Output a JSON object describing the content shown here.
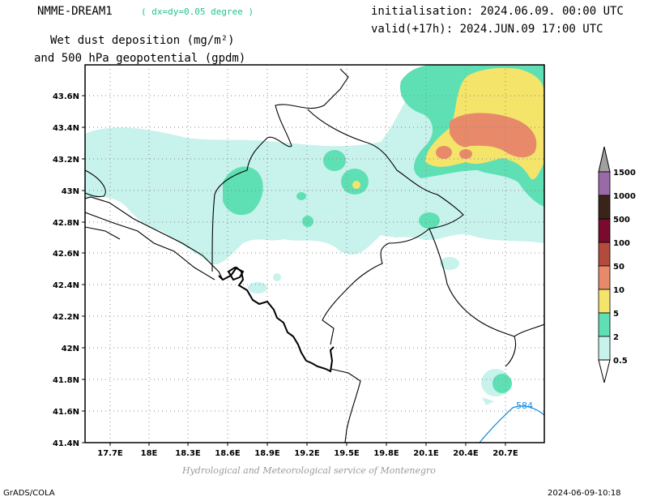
{
  "header": {
    "model": "NMME-DREAM1",
    "resolution": "( dx=dy=0.05 degree )",
    "initialisation": "initialisation: 2024.06.09. 00:00 UTC",
    "valid": "valid(+17h): 2024.JUN.09 17:00 UTC",
    "title_line1": "Wet dust deposition (mg/m²)",
    "title_line2": "and 500 hPa geopotential (gpdm)"
  },
  "map": {
    "lat_labels": [
      "43.6N",
      "43.4N",
      "43.2N",
      "43N",
      "42.8N",
      "42.6N",
      "42.4N",
      "42.2N",
      "42N",
      "41.8N",
      "41.6N",
      "41.4N"
    ],
    "lon_labels": [
      "17.7E",
      "18E",
      "18.3E",
      "18.6E",
      "18.9E",
      "19.2E",
      "19.5E",
      "19.8E",
      "20.1E",
      "20.4E",
      "20.7E"
    ],
    "contour_label": "584",
    "contour_color": "#1e90e0"
  },
  "legend": {
    "levels": [
      "1500",
      "1000",
      "500",
      "100",
      "50",
      "10",
      "5",
      "2",
      "0.5"
    ],
    "colors": [
      "#9a6aa8",
      "#3a2418",
      "#7a0a2e",
      "#b24a3e",
      "#e88a6a",
      "#f4e46a",
      "#5ee0b4",
      "#c8f2ec"
    ]
  },
  "footer": {
    "credit": "Hydrological and Meteorological service of Montenegro",
    "software": "GrADS/COLA",
    "timestamp": "2024-06-09-10:18"
  }
}
